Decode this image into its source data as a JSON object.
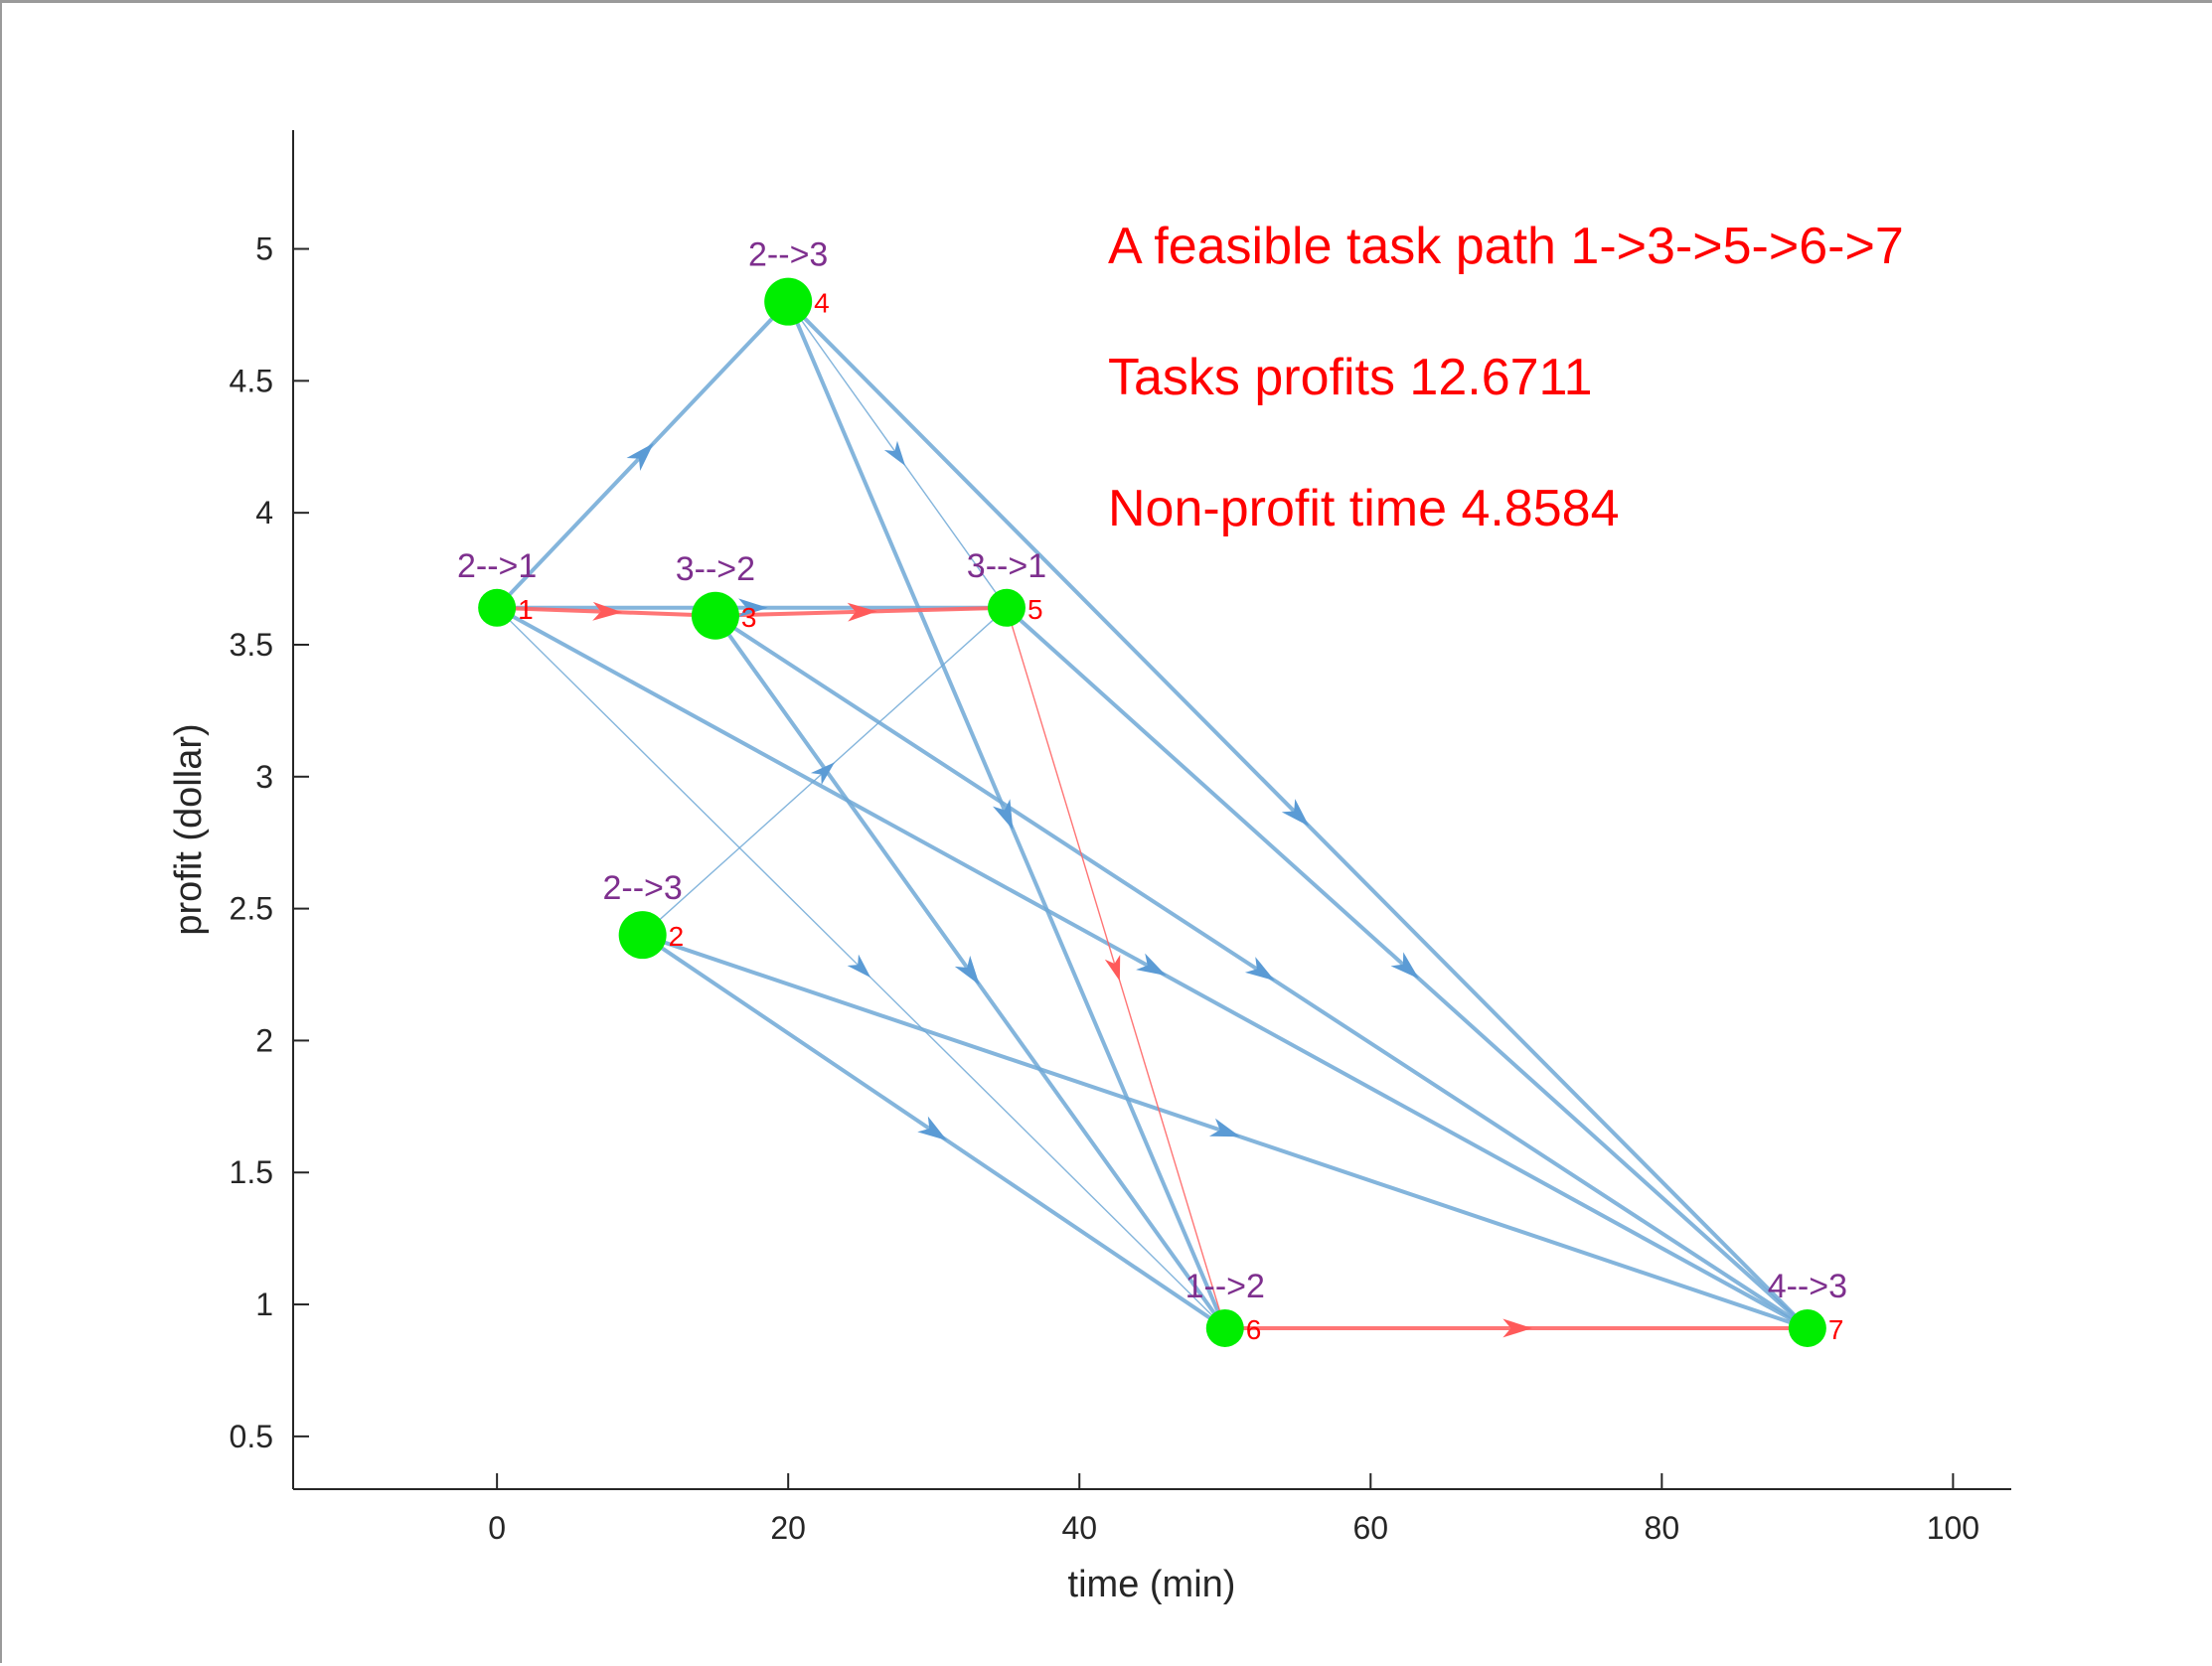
{
  "chart_data": {
    "type": "scatter",
    "title": "",
    "xlabel": "time (min)",
    "ylabel": "profit (dollar)",
    "xlim": [
      -14,
      104
    ],
    "ylim": [
      0.3,
      5.45
    ],
    "xticks": [
      "0",
      "20",
      "40",
      "60",
      "80",
      "100"
    ],
    "xtick_values": [
      0,
      20,
      40,
      60,
      80,
      100
    ],
    "yticks": [
      "0.5",
      "1",
      "1.5",
      "2",
      "2.5",
      "3",
      "3.5",
      "4",
      "4.5",
      "5"
    ],
    "ytick_values": [
      0.5,
      1,
      1.5,
      2,
      2.5,
      3,
      3.5,
      4,
      4.5,
      5
    ],
    "grid": false,
    "annotations": [
      "A feasible task path 1->3->5->6->7",
      "Tasks profits 12.6711",
      "Non-profit time 4.8584"
    ],
    "nodes": [
      {
        "id": "1",
        "label": "2-->1",
        "x": 0,
        "y": 3.64,
        "size": 0.8
      },
      {
        "id": "2",
        "label": "2-->3",
        "x": 10,
        "y": 2.4,
        "size": 1.0
      },
      {
        "id": "3",
        "label": "3-->2",
        "x": 15,
        "y": 3.61,
        "size": 1.0
      },
      {
        "id": "4",
        "label": "2-->3",
        "x": 20,
        "y": 4.8,
        "size": 1.0
      },
      {
        "id": "5",
        "label": "3-->1",
        "x": 35,
        "y": 3.64,
        "size": 0.8
      },
      {
        "id": "6",
        "label": "1-->2",
        "x": 50,
        "y": 0.91,
        "size": 0.8
      },
      {
        "id": "7",
        "label": "4-->3",
        "x": 90,
        "y": 0.91,
        "size": 0.8
      }
    ],
    "edges": [
      {
        "from": "1",
        "to": "3",
        "weight": 1.0,
        "highlight": true
      },
      {
        "from": "3",
        "to": "5",
        "weight": 1.0,
        "highlight": true
      },
      {
        "from": "5",
        "to": "6",
        "weight": 0.3,
        "highlight": true
      },
      {
        "from": "6",
        "to": "7",
        "weight": 1.0,
        "highlight": true
      },
      {
        "from": "1",
        "to": "4",
        "weight": 1.0,
        "highlight": false
      },
      {
        "from": "1",
        "to": "5",
        "weight": 1.0,
        "highlight": false
      },
      {
        "from": "1",
        "to": "6",
        "weight": 0.3,
        "highlight": false
      },
      {
        "from": "1",
        "to": "7",
        "weight": 1.0,
        "highlight": false
      },
      {
        "from": "2",
        "to": "5",
        "weight": 0.3,
        "highlight": false
      },
      {
        "from": "2",
        "to": "6",
        "weight": 1.0,
        "highlight": false
      },
      {
        "from": "2",
        "to": "7",
        "weight": 1.0,
        "highlight": false
      },
      {
        "from": "3",
        "to": "6",
        "weight": 1.0,
        "highlight": false
      },
      {
        "from": "3",
        "to": "7",
        "weight": 1.0,
        "highlight": false
      },
      {
        "from": "4",
        "to": "5",
        "weight": 0.3,
        "highlight": false
      },
      {
        "from": "4",
        "to": "6",
        "weight": 1.0,
        "highlight": false
      },
      {
        "from": "4",
        "to": "7",
        "weight": 1.0,
        "highlight": false
      },
      {
        "from": "5",
        "to": "7",
        "weight": 1.0,
        "highlight": false
      }
    ],
    "colors": {
      "edge": "#6fa8d6",
      "highlight_edge": "#ff6666",
      "node": "#00ee00",
      "node_top_label": "#7e2f8e",
      "node_id_label": "#ff0000",
      "annotation": "#ff0000"
    }
  }
}
